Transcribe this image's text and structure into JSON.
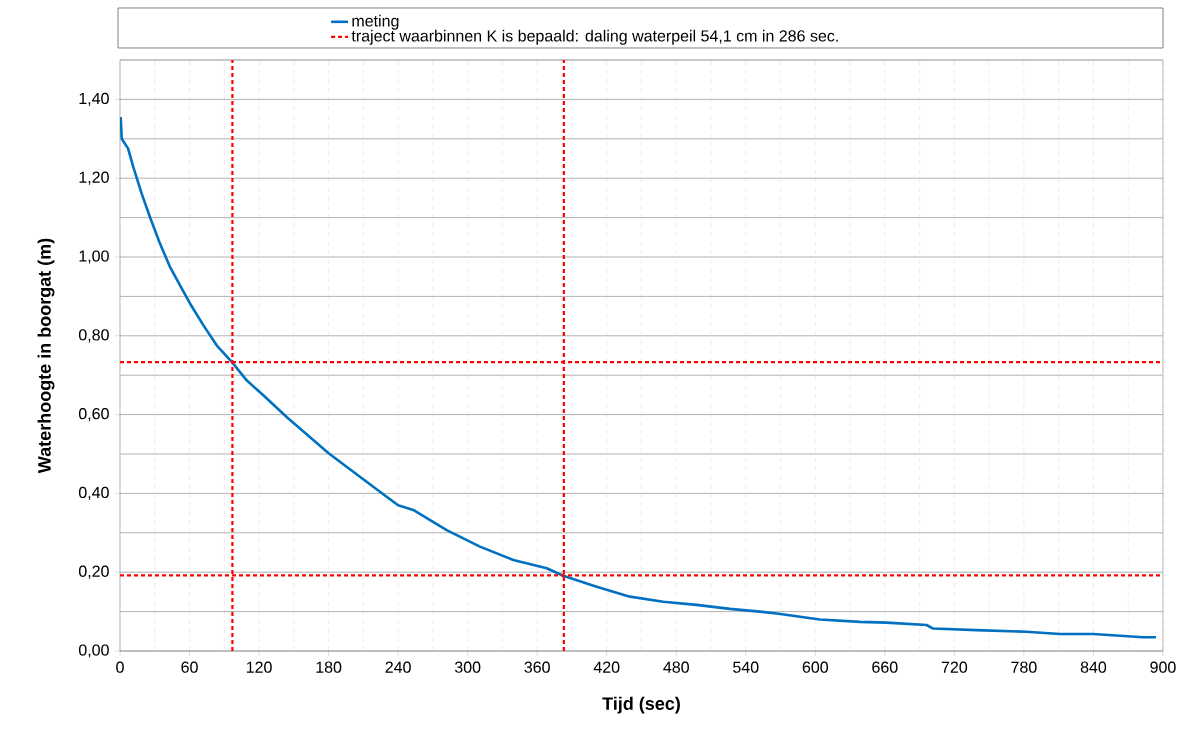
{
  "chart_data": {
    "type": "line",
    "xlabel": "Tijd (sec)",
    "ylabel": "Waterhoogte in boorgat (m)",
    "series": [
      {
        "name": "meting",
        "color": "#0070c0",
        "x": [
          0.6,
          1.5,
          7,
          11.5,
          18.7,
          25.9,
          34.5,
          43.1,
          51.8,
          60.4,
          71.9,
          83.4,
          96.4,
          109.3,
          123.7,
          143.8,
          180,
          224.3,
          240,
          253,
          281.9,
          310.6,
          339.4,
          368.2,
          382.5,
          411.3,
          440,
          468.8,
          497.5,
          526.3,
          552,
          566.6,
          604,
          638.5,
          661.5,
          696,
          701.7,
          739,
          782,
          811,
          839.8,
          882.9,
          894
        ],
        "values": [
          1.355,
          1.3,
          1.275,
          1.228,
          1.161,
          1.101,
          1.034,
          0.975,
          0.928,
          0.882,
          0.827,
          0.776,
          0.734,
          0.687,
          0.649,
          0.594,
          0.502,
          0.404,
          0.37,
          0.358,
          0.307,
          0.265,
          0.231,
          0.21,
          0.191,
          0.163,
          0.138,
          0.125,
          0.117,
          0.107,
          0.1,
          0.095,
          0.08,
          0.074,
          0.072,
          0.066,
          0.057,
          0.053,
          0.049,
          0.043,
          0.043,
          0.035,
          0.035
        ]
      }
    ],
    "ref_lines": [
      {
        "axis": "x",
        "value": 97,
        "label": "traject waarbinnen K is bepaald: daling waterpeil 54,1 cm in 286 sec.",
        "color": "#ff0000",
        "line_style": "dashed"
      },
      {
        "axis": "x",
        "value": 383,
        "color": "#ff0000",
        "line_style": "dashed"
      },
      {
        "axis": "y",
        "value": 0.733,
        "color": "#ff0000",
        "line_style": "dashed"
      },
      {
        "axis": "y",
        "value": 0.192,
        "color": "#ff0000",
        "line_style": "dashed"
      }
    ],
    "xlim": [
      0,
      900
    ],
    "ylim": [
      0,
      1.5
    ],
    "xticks": [
      0,
      {
        "value": 30,
        "label": null
      },
      60,
      {
        "value": 90,
        "label": null
      },
      120,
      {
        "value": 150,
        "label": null
      },
      180,
      {
        "value": 210,
        "label": null
      },
      240,
      {
        "value": 270,
        "label": null
      },
      300,
      {
        "value": 330,
        "label": null
      },
      360,
      {
        "value": 390,
        "label": null
      },
      420,
      {
        "value": 450,
        "label": null
      },
      480,
      {
        "value": 510,
        "label": null
      },
      540,
      {
        "value": 570,
        "label": null
      },
      600,
      {
        "value": 630,
        "label": null
      },
      660,
      {
        "value": 690,
        "label": null
      },
      720,
      {
        "value": 750,
        "label": null
      },
      780,
      {
        "value": 810,
        "label": null
      },
      840,
      {
        "value": 870,
        "label": null
      },
      900
    ],
    "yticks": [
      {
        "value": 0,
        "label": "0,00"
      },
      {
        "value": 0.1,
        "label": null
      },
      {
        "value": 0.2,
        "label": "0,20"
      },
      {
        "value": 0.3,
        "label": null
      },
      {
        "value": 0.4,
        "label": "0,40"
      },
      {
        "value": 0.5,
        "label": null
      },
      {
        "value": 0.6,
        "label": "0,60"
      },
      {
        "value": 0.7,
        "label": null
      },
      {
        "value": 0.8,
        "label": "0,80"
      },
      {
        "value": 0.9,
        "label": null
      },
      {
        "value": 1.0,
        "label": "1,00"
      },
      {
        "value": 1.1,
        "label": null
      },
      {
        "value": 1.2,
        "label": "1,20"
      },
      {
        "value": 1.3,
        "label": null
      },
      {
        "value": 1.4,
        "label": "1,40"
      },
      {
        "value": 1.5,
        "label": null
      }
    ],
    "grid": true,
    "legend": "top",
    "marker": "none",
    "line_style": "solid"
  }
}
